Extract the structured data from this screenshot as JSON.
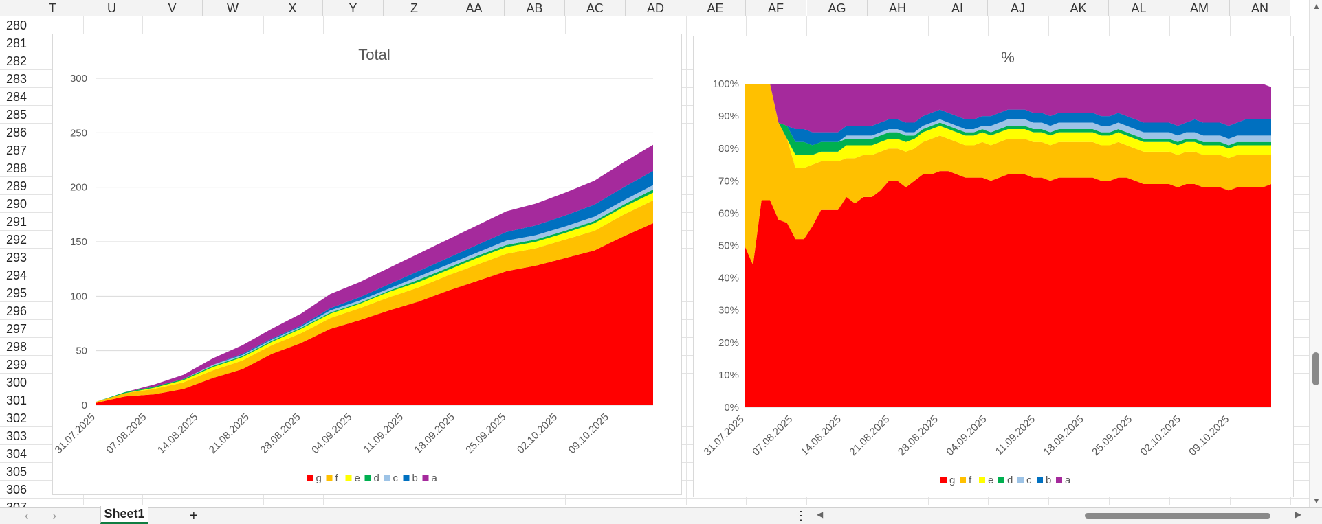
{
  "spreadsheet": {
    "columns": [
      "T",
      "U",
      "V",
      "W",
      "X",
      "Y",
      "Z",
      "AA",
      "AB",
      "AC",
      "AD",
      "AE",
      "AF",
      "AG",
      "AH",
      "AI",
      "AJ",
      "AK",
      "AL",
      "AM",
      "AN"
    ],
    "rows": [
      "280",
      "281",
      "282",
      "283",
      "284",
      "285",
      "286",
      "287",
      "288",
      "289",
      "290",
      "291",
      "292",
      "293",
      "294",
      "295",
      "296",
      "297",
      "298",
      "299",
      "300",
      "301",
      "302",
      "303",
      "304",
      "305",
      "306",
      "307"
    ],
    "sheet_tab": "Sheet1",
    "add_sheet": "+",
    "more_menu": "⋮"
  },
  "chart_data": [
    {
      "type": "area",
      "stacked": true,
      "title": "Total",
      "ylim": [
        0,
        300
      ],
      "yticks": [
        "0",
        "50",
        "100",
        "150",
        "200",
        "250",
        "300"
      ],
      "xtick_labels": [
        "31.07.2025",
        "07.08.2025",
        "14.08.2025",
        "21.08.2025",
        "28.08.2025",
        "04.09.2025",
        "11.09.2025",
        "18.09.2025",
        "25.09.2025",
        "02.10.2025",
        "09.10.2025"
      ],
      "x_start": "31.07.2025",
      "x_end": "15.10.2025",
      "grid": true,
      "legend": "bottom",
      "series": [
        {
          "name": "g",
          "color": "#ff0000",
          "values": [
            2,
            8,
            10,
            15,
            25,
            33,
            47,
            57,
            70,
            78,
            87,
            95,
            105,
            114,
            123,
            128,
            135,
            142,
            155,
            167
          ]
        },
        {
          "name": "f",
          "color": "#ffc000",
          "values": [
            1,
            3,
            5,
            6,
            7,
            8,
            8,
            9,
            10,
            11,
            12,
            13,
            14,
            15,
            16,
            16,
            17,
            18,
            20,
            21
          ]
        },
        {
          "name": "e",
          "color": "#ffff00",
          "values": [
            0,
            0,
            1,
            2,
            3,
            3,
            3,
            4,
            4,
            4,
            5,
            5,
            5,
            6,
            6,
            6,
            6,
            7,
            7,
            7
          ]
        },
        {
          "name": "d",
          "color": "#00b050",
          "values": [
            0,
            1,
            1,
            1,
            1,
            1,
            1,
            1,
            1,
            1,
            1,
            2,
            2,
            2,
            2,
            2,
            2,
            2,
            2,
            3
          ]
        },
        {
          "name": "c",
          "color": "#9dc3e6",
          "values": [
            0,
            0,
            0,
            0,
            1,
            1,
            1,
            1,
            2,
            2,
            2,
            3,
            3,
            3,
            4,
            4,
            4,
            4,
            4,
            4
          ]
        },
        {
          "name": "b",
          "color": "#0070c0",
          "values": [
            0,
            0,
            0,
            0,
            0,
            1,
            1,
            1,
            2,
            3,
            4,
            5,
            6,
            7,
            8,
            9,
            10,
            11,
            12,
            13
          ]
        },
        {
          "name": "a",
          "color": "#a52a9c",
          "values": [
            0,
            0,
            2,
            4,
            6,
            8,
            9,
            11,
            13,
            14,
            15,
            16,
            17,
            18,
            19,
            20,
            21,
            22,
            23,
            24
          ]
        }
      ]
    },
    {
      "type": "area",
      "stacked": true,
      "percent": true,
      "title": "%",
      "ylim": [
        0,
        100
      ],
      "yticks": [
        "0%",
        "10%",
        "20%",
        "30%",
        "40%",
        "50%",
        "60%",
        "70%",
        "80%",
        "90%",
        "100%"
      ],
      "xtick_labels": [
        "31.07.2025",
        "07.08.2025",
        "14.08.2025",
        "21.08.2025",
        "28.08.2025",
        "04.09.2025",
        "11.09.2025",
        "18.09.2025",
        "25.09.2025",
        "02.10.2025",
        "09.10.2025"
      ],
      "x_start": "31.07.2025",
      "x_end": "15.10.2025",
      "grid": false,
      "legend": "bottom",
      "series": [
        {
          "name": "g",
          "color": "#ff0000",
          "values": [
            50,
            44,
            64,
            64,
            58,
            57,
            52,
            52,
            56,
            61,
            61,
            61,
            65,
            63,
            65,
            65,
            67,
            70,
            70,
            68,
            70,
            72,
            72,
            73,
            73,
            72,
            71,
            71,
            71,
            70,
            71,
            72,
            72,
            72,
            71,
            71,
            70,
            71,
            71,
            71,
            71,
            71,
            70,
            70,
            71,
            71,
            70,
            69,
            69,
            69,
            69,
            68,
            69,
            69,
            68,
            68,
            68,
            67,
            68,
            68,
            68,
            68,
            69
          ]
        },
        {
          "name": "f",
          "color": "#ffc000",
          "values": [
            50,
            56,
            36,
            36,
            30,
            26,
            22,
            22,
            19,
            15,
            15,
            15,
            12,
            14,
            13,
            13,
            12,
            10,
            10,
            11,
            10,
            10,
            11,
            11,
            10,
            10,
            10,
            10,
            11,
            11,
            11,
            11,
            11,
            11,
            11,
            11,
            11,
            11,
            11,
            11,
            11,
            11,
            11,
            11,
            11,
            10,
            10,
            10,
            10,
            10,
            10,
            10,
            10,
            10,
            10,
            10,
            10,
            10,
            10,
            10,
            10,
            10,
            9
          ]
        },
        {
          "name": "e",
          "color": "#ffff00",
          "values": [
            0,
            0,
            0,
            0,
            0,
            0,
            4,
            4,
            3,
            3,
            3,
            3,
            4,
            4,
            3,
            3,
            3,
            3,
            3,
            3,
            3,
            3,
            3,
            3,
            3,
            3,
            3,
            3,
            3,
            3,
            3,
            3,
            3,
            3,
            3,
            3,
            3,
            3,
            3,
            3,
            3,
            3,
            3,
            3,
            3,
            3,
            3,
            3,
            3,
            3,
            3,
            3,
            3,
            3,
            3,
            3,
            3,
            3,
            3,
            3,
            3,
            3,
            3
          ]
        },
        {
          "name": "d",
          "color": "#00b050",
          "values": [
            0,
            0,
            0,
            0,
            0,
            4,
            4,
            4,
            3,
            3,
            3,
            3,
            2,
            2,
            2,
            2,
            2,
            2,
            2,
            2,
            1,
            1,
            1,
            1,
            1,
            1,
            1,
            1,
            1,
            1,
            1,
            1,
            1,
            1,
            1,
            1,
            1,
            1,
            1,
            1,
            1,
            1,
            1,
            1,
            1,
            1,
            1,
            1,
            1,
            1,
            1,
            1,
            1,
            1,
            1,
            1,
            1,
            1,
            1,
            1,
            1,
            1,
            1
          ]
        },
        {
          "name": "c",
          "color": "#9dc3e6",
          "values": [
            0,
            0,
            0,
            0,
            0,
            0,
            0,
            0,
            0,
            0,
            0,
            0,
            1,
            1,
            1,
            1,
            1,
            1,
            1,
            1,
            1,
            1,
            1,
            1,
            1,
            1,
            1,
            1,
            1,
            2,
            2,
            2,
            2,
            2,
            2,
            2,
            2,
            2,
            2,
            2,
            2,
            2,
            2,
            2,
            2,
            2,
            2,
            2,
            2,
            2,
            2,
            2,
            2,
            2,
            2,
            2,
            2,
            2,
            2,
            2,
            2,
            2,
            2
          ]
        },
        {
          "name": "b",
          "color": "#0070c0",
          "values": [
            0,
            0,
            0,
            0,
            0,
            0,
            4,
            4,
            4,
            3,
            3,
            3,
            3,
            3,
            3,
            3,
            3,
            3,
            3,
            3,
            3,
            3,
            3,
            3,
            3,
            3,
            3,
            3,
            3,
            3,
            3,
            3,
            3,
            3,
            3,
            3,
            3,
            3,
            3,
            3,
            3,
            3,
            3,
            3,
            3,
            3,
            3,
            3,
            3,
            3,
            3,
            3,
            3,
            4,
            4,
            4,
            4,
            4,
            4,
            5,
            5,
            5,
            5
          ]
        },
        {
          "name": "a",
          "color": "#a52a9c",
          "values": [
            0,
            0,
            0,
            0,
            12,
            13,
            14,
            14,
            15,
            15,
            15,
            15,
            13,
            13,
            13,
            13,
            12,
            11,
            11,
            13,
            12,
            10,
            9,
            8,
            9,
            10,
            11,
            11,
            10,
            10,
            9,
            8,
            8,
            8,
            9,
            9,
            10,
            9,
            9,
            9,
            9,
            9,
            10,
            10,
            9,
            10,
            11,
            12,
            12,
            12,
            12,
            13,
            12,
            11,
            12,
            12,
            12,
            13,
            12,
            11,
            11,
            11,
            10
          ]
        }
      ]
    }
  ]
}
